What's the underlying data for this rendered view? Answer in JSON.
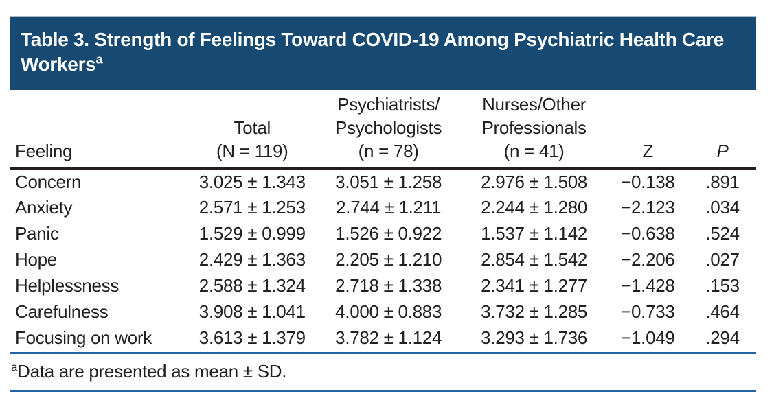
{
  "colors": {
    "title_bar_bg": "#174a73",
    "rule_blue": "#2163a4",
    "text": "#231f20",
    "title_text": "#ffffff"
  },
  "title": {
    "text": "Table 3. Strength of Feelings Toward COVID-19 Among Psychiatric Health Care Workers",
    "superscript": "a"
  },
  "table": {
    "columns": [
      {
        "id": "feeling",
        "header_lines": [
          "Feeling"
        ],
        "align": "left",
        "italic_header": false
      },
      {
        "id": "total",
        "header_lines": [
          "Total",
          "(N = 119)"
        ],
        "align": "center",
        "italic_header": false
      },
      {
        "id": "psychiatrists_psychologists",
        "header_lines": [
          "Psychiatrists/",
          "Psychologists",
          "(n = 78)"
        ],
        "align": "center",
        "italic_header": false
      },
      {
        "id": "nurses_other_professionals",
        "header_lines": [
          "Nurses/Other",
          "Professionals",
          "(n = 41)"
        ],
        "align": "center",
        "italic_header": false
      },
      {
        "id": "z",
        "header_lines": [
          "Z"
        ],
        "align": "center",
        "italic_header": false
      },
      {
        "id": "p",
        "header_lines": [
          "P"
        ],
        "align": "center",
        "italic_header": true
      }
    ],
    "rows": [
      {
        "feeling": "Concern",
        "total": "3.025 ± 1.343",
        "psychiatrists_psychologists": "3.051 ± 1.258",
        "nurses_other_professionals": "2.976 ± 1.508",
        "z": "−0.138",
        "p": ".891"
      },
      {
        "feeling": "Anxiety",
        "total": "2.571 ± 1.253",
        "psychiatrists_psychologists": "2.744 ± 1.211",
        "nurses_other_professionals": "2.244 ± 1.280",
        "z": "−2.123",
        "p": ".034"
      },
      {
        "feeling": "Panic",
        "total": "1.529 ± 0.999",
        "psychiatrists_psychologists": "1.526 ± 0.922",
        "nurses_other_professionals": "1.537 ± 1.142",
        "z": "−0.638",
        "p": ".524"
      },
      {
        "feeling": "Hope",
        "total": "2.429 ± 1.363",
        "psychiatrists_psychologists": "2.205 ± 1.210",
        "nurses_other_professionals": "2.854 ± 1.542",
        "z": "−2.206",
        "p": ".027"
      },
      {
        "feeling": "Helplessness",
        "total": "2.588 ± 1.324",
        "psychiatrists_psychologists": "2.718 ± 1.338",
        "nurses_other_professionals": "2.341 ± 1.277",
        "z": "−1.428",
        "p": ".153"
      },
      {
        "feeling": "Carefulness",
        "total": "3.908 ± 1.041",
        "psychiatrists_psychologists": "4.000 ± 0.883",
        "nurses_other_professionals": "3.732 ± 1.285",
        "z": "−0.733",
        "p": ".464"
      },
      {
        "feeling": "Focusing on work",
        "total": "3.613 ± 1.379",
        "psychiatrists_psychologists": "3.782 ± 1.124",
        "nurses_other_professionals": "3.293 ± 1.736",
        "z": "−1.049",
        "p": ".294"
      }
    ]
  },
  "footnote": {
    "marker": "a",
    "text": "Data are presented as mean ± SD."
  }
}
